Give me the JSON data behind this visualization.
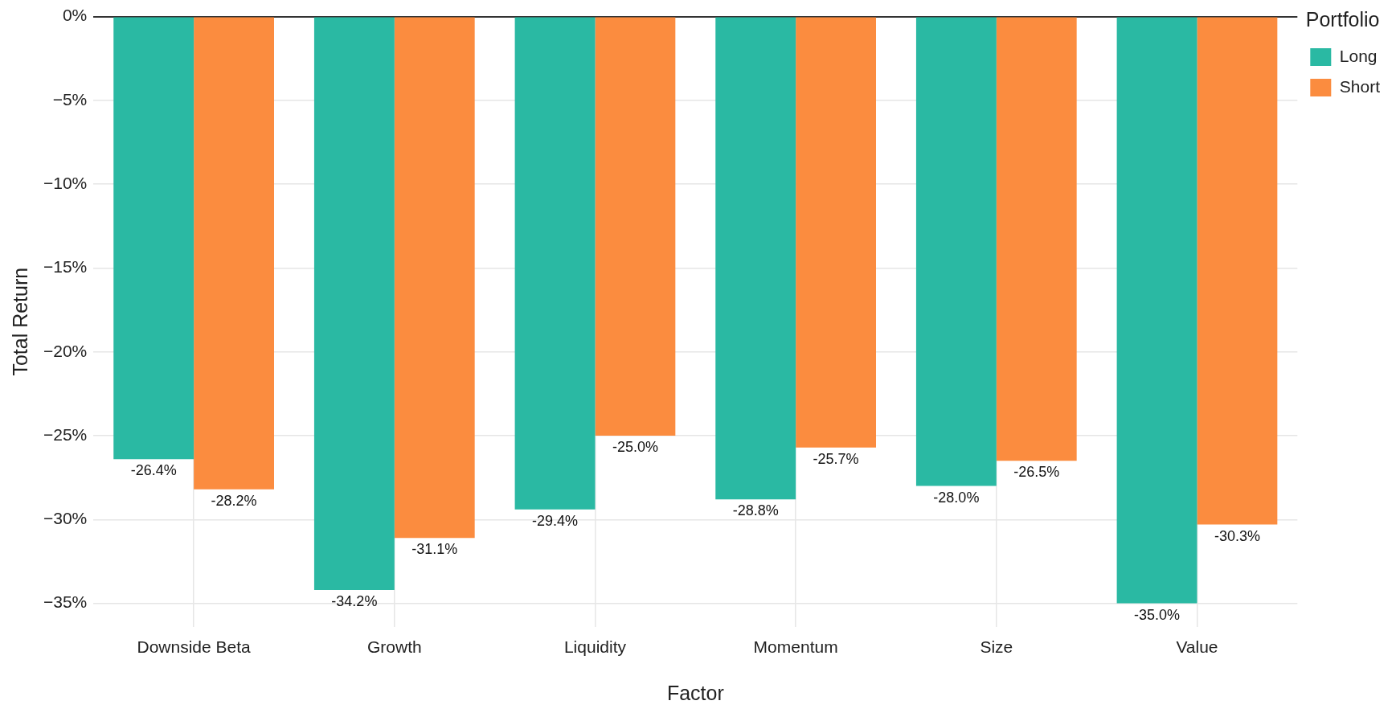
{
  "chart_data": {
    "type": "bar",
    "xlabel": "Factor",
    "ylabel": "Total Return",
    "legend_title": "Portfolio",
    "categories": [
      "Downside Beta",
      "Growth",
      "Liquidity",
      "Momentum",
      "Size",
      "Value"
    ],
    "series": [
      {
        "name": "Long",
        "color": "#2ab9a3",
        "values": [
          -26.4,
          -34.2,
          -29.4,
          -28.8,
          -28.0,
          -35.0
        ],
        "value_labels": [
          "-26.4%",
          "-34.2%",
          "-29.4%",
          "-28.8%",
          "-28.0%",
          "-35.0%"
        ]
      },
      {
        "name": "Short",
        "color": "#fb8c3f",
        "values": [
          -28.2,
          -31.1,
          -25.0,
          -25.7,
          -26.5,
          -30.3
        ],
        "value_labels": [
          "-28.2%",
          "-31.1%",
          "-25.0%",
          "-25.7%",
          "-26.5%",
          "-30.3%"
        ]
      }
    ],
    "ylim": [
      -36.4,
      0
    ],
    "yticks": [
      {
        "value": 0,
        "label": "0%"
      },
      {
        "value": -5,
        "label": "−5%"
      },
      {
        "value": -10,
        "label": "−10%"
      },
      {
        "value": -15,
        "label": "−15%"
      },
      {
        "value": -20,
        "label": "−20%"
      },
      {
        "value": -25,
        "label": "−25%"
      },
      {
        "value": -30,
        "label": "−30%"
      },
      {
        "value": -35,
        "label": "−35%"
      }
    ],
    "grid": true,
    "legend": "top right"
  }
}
